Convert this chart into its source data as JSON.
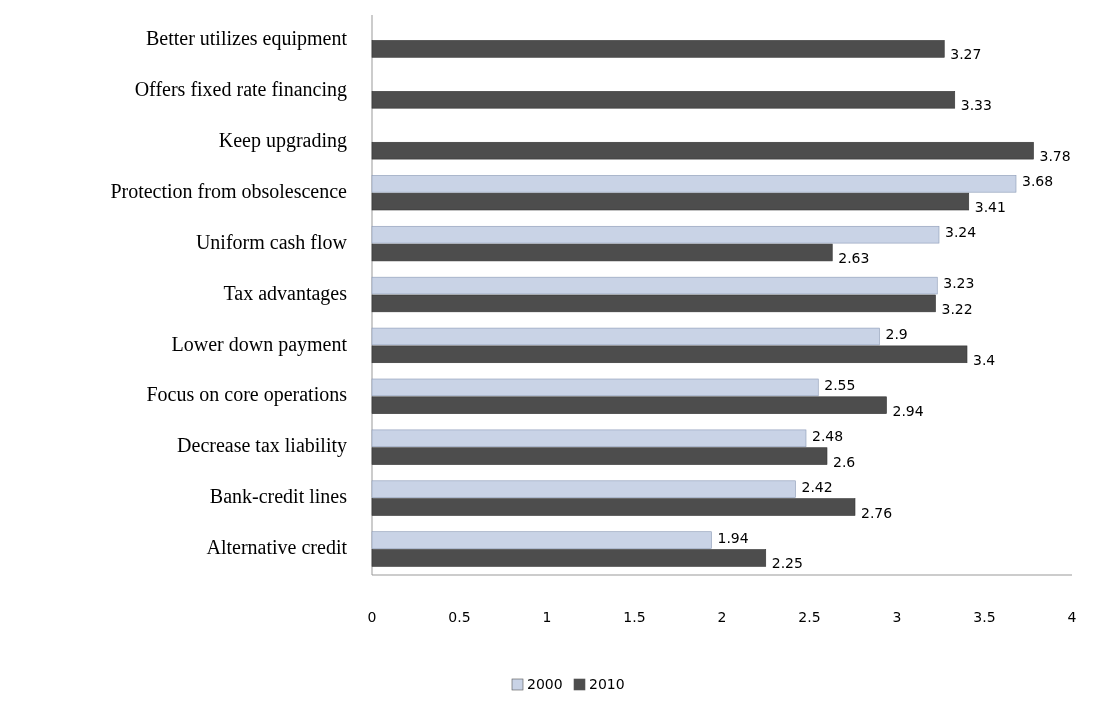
{
  "chart_data": {
    "type": "bar",
    "orientation": "horizontal",
    "categories": [
      "Better utilizes equipment",
      "Offers fixed rate financing",
      "Keep upgrading",
      "Protection from obsolescence",
      "Uniform cash flow",
      "Tax advantages",
      "Lower down payment",
      "Focus on core operations",
      "Decrease tax liability",
      "Bank-credit lines",
      "Alternative credit"
    ],
    "series": [
      {
        "name": "2000",
        "color": "#c9d3e6",
        "values": [
          null,
          null,
          null,
          3.68,
          3.24,
          3.23,
          2.9,
          2.55,
          2.48,
          2.42,
          1.94
        ]
      },
      {
        "name": "2010",
        "color": "#4d4d4d",
        "values": [
          3.27,
          3.33,
          3.78,
          3.41,
          2.63,
          3.22,
          3.4,
          2.94,
          2.6,
          2.76,
          2.25
        ]
      }
    ],
    "xlim": [
      0,
      4
    ],
    "xticks": [
      0,
      0.5,
      1,
      1.5,
      2,
      2.5,
      3,
      3.5,
      4
    ],
    "data_labels": true,
    "grid": false,
    "legend": "bottom"
  }
}
